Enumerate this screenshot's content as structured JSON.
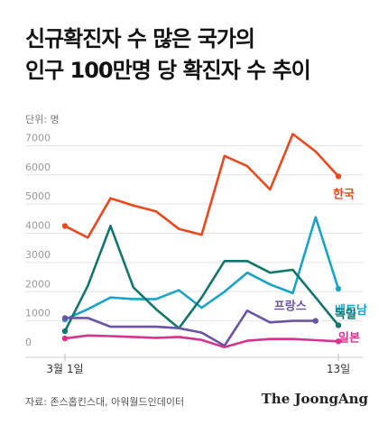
{
  "title_line1": "신규확진자 수 많은 국가의",
  "title_line2": "인구 100만명 당 확진자 수 추이",
  "unit_label": "단위: 명",
  "source": "자료: 존스홉킨스대, 아워월드인데이터",
  "brand": "The JoongAng",
  "chart_data": {
    "type": "line",
    "title": "신규확진자 수 많은 국가의 인구 100만명 당 확진자 수 추이",
    "ylabel": "단위: 명",
    "ylim": [
      0,
      7600
    ],
    "yticks": [
      0,
      1000,
      2000,
      3000,
      4000,
      5000,
      6000,
      7000
    ],
    "x": [
      1,
      2,
      3,
      4,
      5,
      6,
      7,
      8,
      9,
      10,
      11,
      12,
      13
    ],
    "xtick_labels": [
      "3월 1일",
      "13일"
    ],
    "grid": true,
    "legend": "labels at line ends",
    "series": [
      {
        "name": "한국",
        "color": "#e8491d",
        "values": [
          4250,
          3850,
          5200,
          4950,
          4750,
          4150,
          3950,
          6650,
          6300,
          5500,
          7400,
          6800,
          5950
        ]
      },
      {
        "name": "베트남",
        "color": "#1aa3c9",
        "values": [
          1050,
          1400,
          1800,
          1750,
          1750,
          2050,
          1450,
          2000,
          2650,
          2250,
          1950,
          4550,
          2100
        ]
      },
      {
        "name": "독일",
        "color": "#12766f",
        "values": [
          650,
          2200,
          4250,
          2150,
          1400,
          750,
          1800,
          3050,
          3050,
          2650,
          2750,
          1800,
          850
        ]
      },
      {
        "name": "프랑스",
        "color": "#6a55a5",
        "values": [
          1100,
          1100,
          800,
          800,
          800,
          750,
          600,
          150,
          1350,
          950,
          1000,
          1000,
          null
        ]
      },
      {
        "name": "일본",
        "color": "#d6338f",
        "values": [
          400,
          500,
          480,
          450,
          420,
          450,
          350,
          100,
          320,
          380,
          380,
          340,
          300
        ]
      }
    ]
  }
}
